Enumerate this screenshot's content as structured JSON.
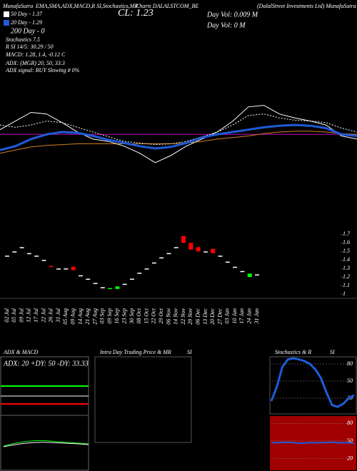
{
  "header": {
    "site": "MunafaSutra",
    "indicators": "EMA,SMA,ADX,MACD,R SI,Stochastics,MR",
    "symbol": "Charts DALALSTCOM_BE",
    "company": "(DalalStreet Investments Ltd) MunafaSutra",
    "close": "CL: 1.23",
    "day_vol_1": "Day Vol: 0.009 M",
    "day_vol_2": "Day Vol: 0  M",
    "ema200": "200 Day - 0",
    "stochastics": "Stochastics 7.5",
    "rsi": "R  SI 14/5: 30.29 / 50",
    "macd": "MACD: 1.28, 1.4, -0.12  C",
    "adx": "ADX:  (MGR) 20, 50, 33.3",
    "adx_signal": "ADX  signal:  BUY Slowing # 0%"
  },
  "panels": {
    "adx_title": "ADX  & MACD",
    "adx_values": "ADX: 20  +DY: 50  -DY: 33.33",
    "intraday_title": "Intra  Day Trading Price  & MR",
    "intraday_si": "SI",
    "stoch_title": "Stochastics & R",
    "stoch_si": "SI"
  },
  "chart_data": [
    {
      "type": "line",
      "ylim": [
        0,
        100
      ],
      "series": [
        {
          "color": "#c000c0",
          "values": [
            47,
            47,
            47,
            47,
            47,
            47,
            47,
            47,
            47,
            47,
            47,
            47,
            47,
            47,
            47,
            47,
            47,
            47,
            47,
            47,
            47,
            47,
            47,
            47
          ]
        },
        {
          "color": "#d08020",
          "values": [
            23,
            27,
            31,
            33,
            34,
            35,
            35,
            35,
            35,
            35,
            35,
            35,
            36,
            38,
            41,
            43,
            45,
            48,
            50,
            51,
            51,
            50,
            48,
            47
          ]
        },
        {
          "name": "50 Day - 1.37",
          "color": "#ffffff",
          "dash": true,
          "values": [
            59,
            56,
            59,
            64,
            62,
            56,
            50,
            44,
            38,
            36,
            34,
            35,
            38,
            44,
            50,
            59,
            71,
            73,
            68,
            65,
            64,
            62,
            55,
            50
          ]
        },
        {
          "color": "#ffffff",
          "values": [
            53,
            64,
            75,
            73,
            62,
            50,
            41,
            38,
            32,
            23,
            11,
            20,
            32,
            41,
            50,
            64,
            82,
            84,
            73,
            68,
            64,
            59,
            45,
            41
          ]
        },
        {
          "name": "20 Day - 1.29",
          "color": "#1f5bd8",
          "width": 3,
          "values": [
            27,
            32,
            41,
            47,
            50,
            49,
            45,
            40,
            36,
            32,
            29,
            31,
            36,
            43,
            47,
            50,
            53,
            56,
            58,
            59,
            58,
            55,
            47,
            45
          ]
        }
      ]
    },
    {
      "type": "candlestick",
      "categories": [
        "02 Jul",
        "05 Jul",
        "09 Jul",
        "12 Jul",
        "17 Jul",
        "22 Jul",
        "26 Jul",
        "31 Jul",
        "05 Aug",
        "09 Aug",
        "14 Aug",
        "21 Aug",
        "27 Aug",
        "03 Sep",
        "09 Sep",
        "16 Sep",
        "23 Sep",
        "30 Sep",
        "08 Oct",
        "15 Oct",
        "22 Oct",
        "29 Oct",
        "06 Nov",
        "14 Nov",
        "22 Nov",
        "29 Nov",
        "06 Dec",
        "13 Dec",
        "20 Dec",
        "27 Dec",
        "03 Jan",
        "10 Jan",
        "17 Jan",
        "24 Jan",
        "31 Jan"
      ],
      "open": [
        1.45,
        1.5,
        1.55,
        1.48,
        1.45,
        1.4,
        1.33,
        1.3,
        1.3,
        1.32,
        1.22,
        1.18,
        1.13,
        1.08,
        1.06,
        1.06,
        1.12,
        1.18,
        1.25,
        1.3,
        1.37,
        1.43,
        1.48,
        1.55,
        1.68,
        1.6,
        1.55,
        1.5,
        1.53,
        1.45,
        1.38,
        1.32,
        1.27,
        1.2,
        1.23
      ],
      "close": [
        1.45,
        1.5,
        1.55,
        1.48,
        1.45,
        1.4,
        1.32,
        1.3,
        1.3,
        1.28,
        1.22,
        1.18,
        1.13,
        1.08,
        1.07,
        1.09,
        1.12,
        1.18,
        1.25,
        1.3,
        1.37,
        1.43,
        1.48,
        1.55,
        1.6,
        1.52,
        1.5,
        1.5,
        1.48,
        1.45,
        1.38,
        1.32,
        1.27,
        1.24,
        1.23
      ],
      "up_color": "#00ff00",
      "down_color": "#ff0000",
      "flat_color": "#ffffff",
      "ylim": [
        0.95,
        1.77
      ],
      "yticks": [
        1.7,
        1.6,
        1.5,
        1.4,
        1.3,
        1.2,
        1.1,
        1
      ]
    },
    {
      "type": "line",
      "ylim": [
        -5,
        95
      ],
      "yticks": [
        80,
        50,
        20
      ],
      "series": [
        {
          "color": "#1f5bd8",
          "width": 3,
          "values": [
            15,
            40,
            75,
            88,
            90,
            88,
            85,
            80,
            70,
            55,
            30,
            8,
            5,
            10,
            20,
            25
          ]
        }
      ]
    },
    {
      "type": "line",
      "ylim": [
        5,
        90
      ],
      "yticks": [
        80,
        50,
        20
      ],
      "series": [
        {
          "color": "#1f5bd8",
          "width": 2,
          "values": [
            47,
            47,
            48,
            47,
            46,
            47,
            47,
            47,
            48,
            47,
            47,
            46
          ]
        }
      ]
    }
  ]
}
